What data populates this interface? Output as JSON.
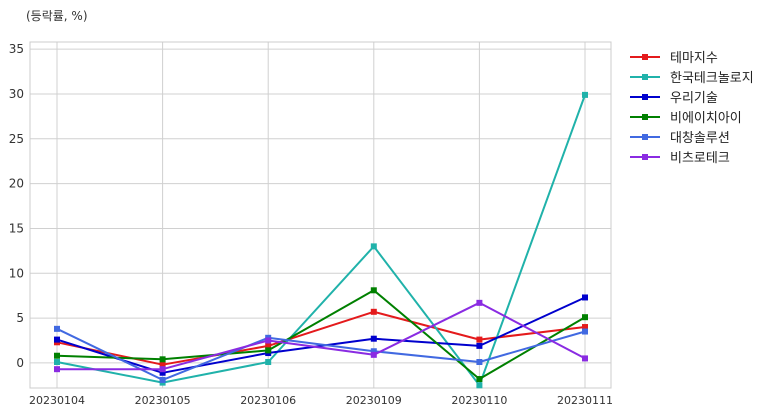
{
  "chart_data": {
    "type": "line",
    "ylabel": "(등락률, %)",
    "categories": [
      "20230104",
      "20230105",
      "20230106",
      "20230109",
      "20230110",
      "20230111"
    ],
    "y_ticks": [
      0,
      5,
      10,
      15,
      20,
      25,
      30,
      35
    ],
    "ylim": [
      -2.8,
      35.8
    ],
    "grid": true,
    "legend_position": "outside-right-top",
    "series": [
      {
        "name": "테마지수",
        "color": "#e41a1c",
        "values": [
          2.3,
          -0.2,
          1.9,
          5.7,
          2.6,
          4.0
        ]
      },
      {
        "name": "한국테크놀로지",
        "color": "#20b2aa",
        "values": [
          0.1,
          -2.2,
          0.1,
          13.0,
          -2.5,
          29.9
        ]
      },
      {
        "name": "우리기술",
        "color": "#0000cd",
        "values": [
          2.6,
          -1.1,
          1.1,
          2.7,
          1.9,
          7.3
        ]
      },
      {
        "name": "비에이치아이",
        "color": "#008000",
        "values": [
          0.8,
          0.4,
          1.4,
          8.1,
          -1.8,
          5.1
        ]
      },
      {
        "name": "대창솔루션",
        "color": "#4169e1",
        "values": [
          3.8,
          -1.9,
          2.8,
          1.3,
          0.1,
          3.5
        ]
      },
      {
        "name": "비츠로테크",
        "color": "#8a2be2",
        "values": [
          -0.7,
          -0.7,
          2.5,
          0.9,
          6.7,
          0.5
        ]
      }
    ]
  }
}
